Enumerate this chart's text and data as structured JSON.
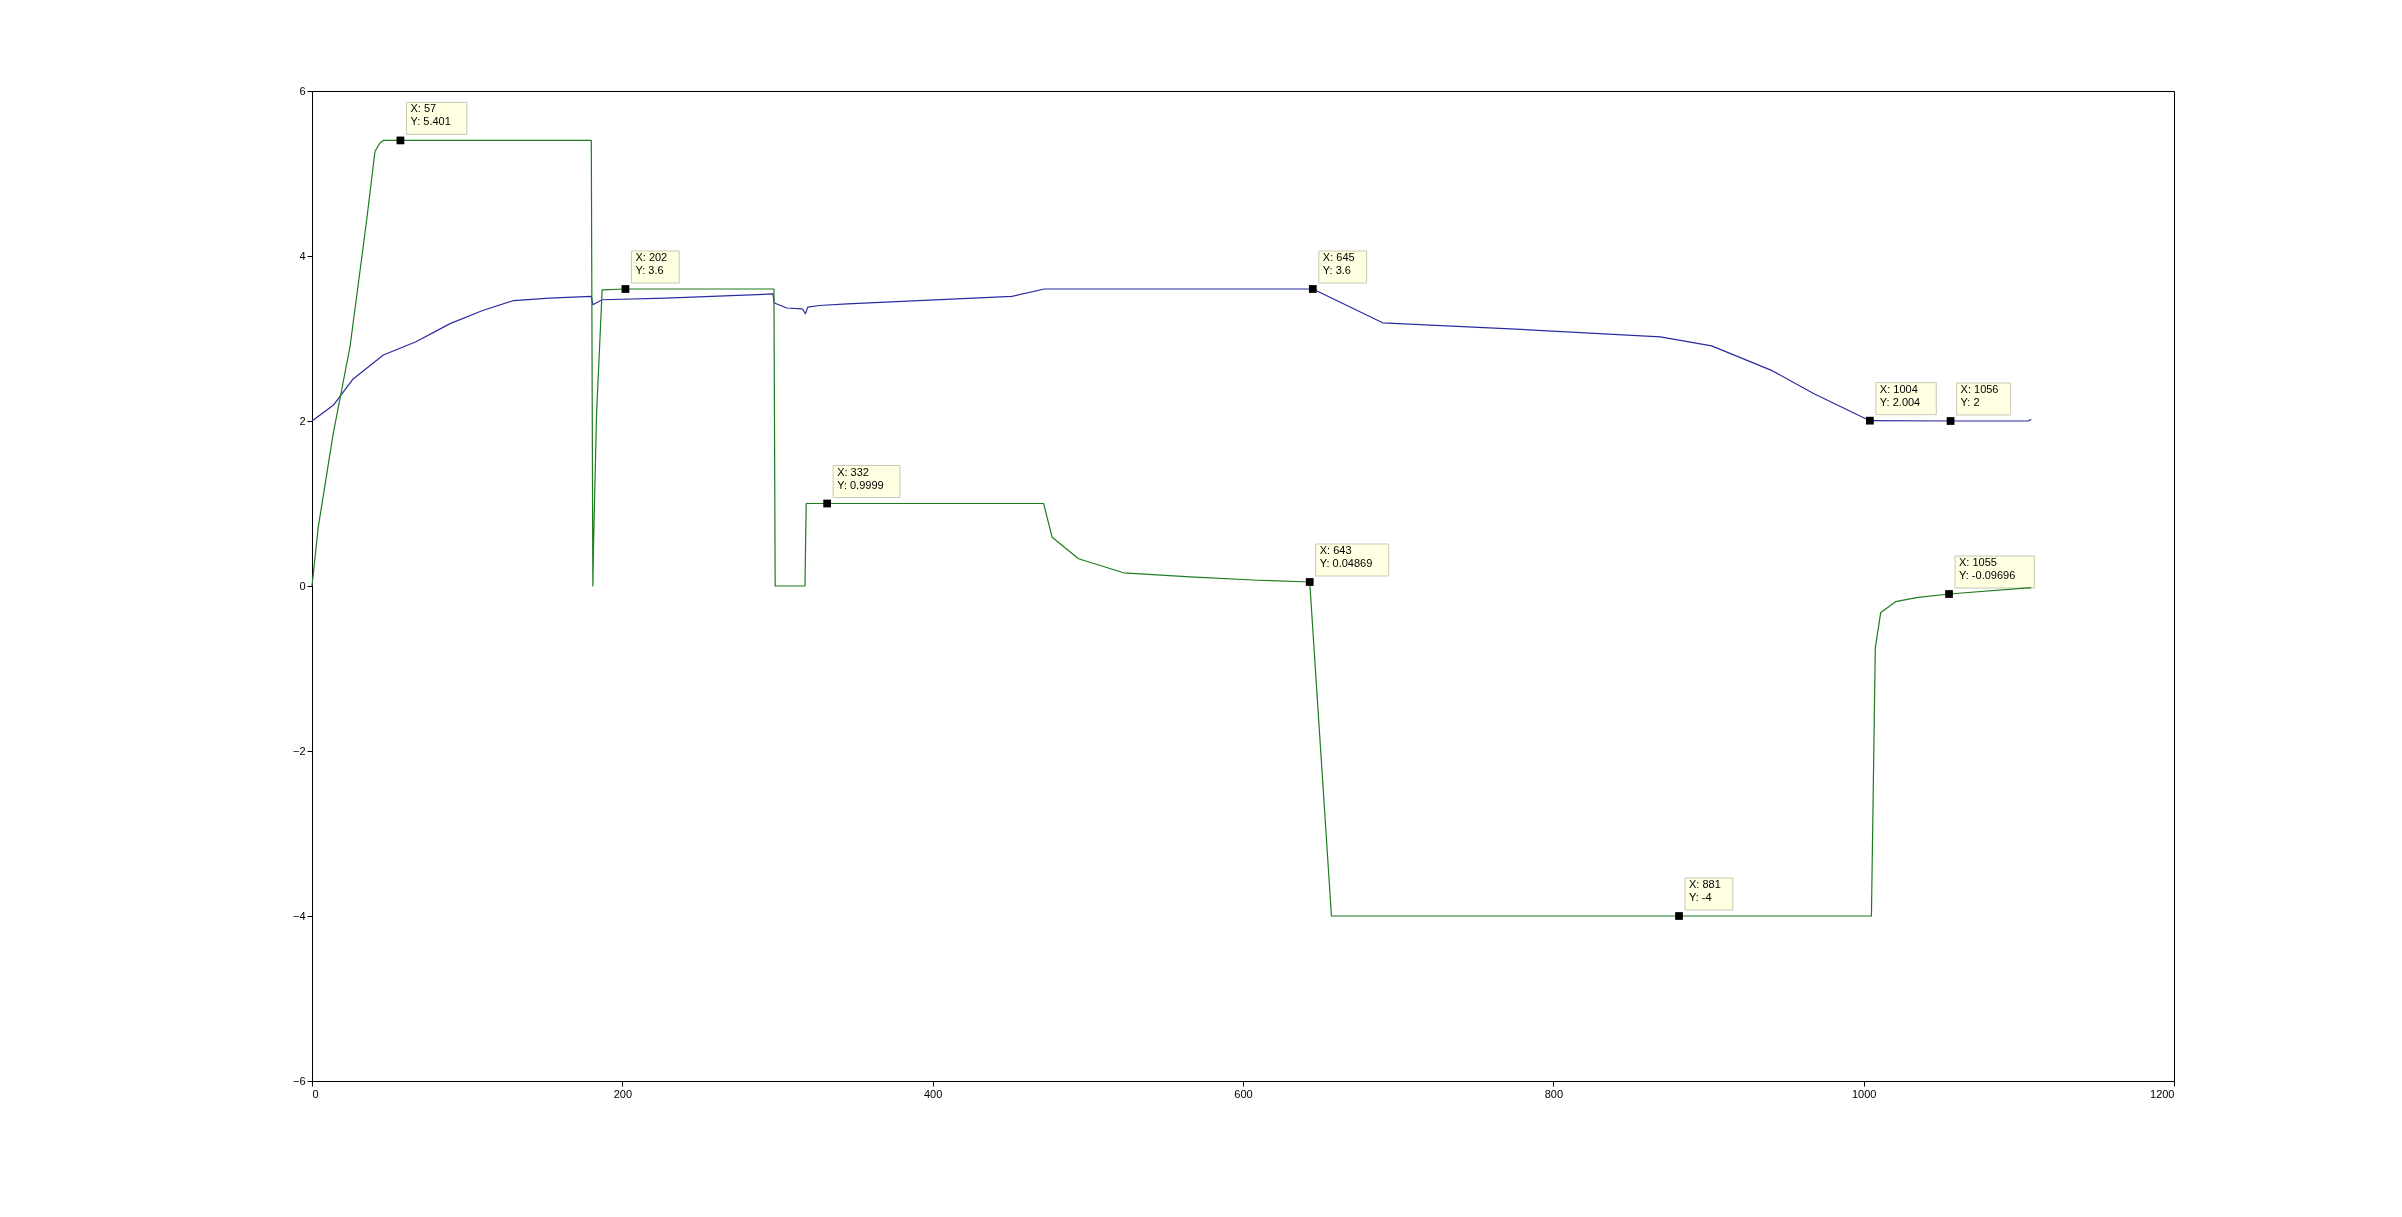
{
  "chart_data": {
    "type": "line",
    "xlim": [
      0,
      1200
    ],
    "xticks": [
      0,
      200,
      400,
      600,
      800,
      1000,
      1200
    ],
    "ylim": [
      -6,
      6
    ],
    "yticks": [
      -6,
      -4,
      -2,
      0,
      2,
      4,
      6
    ],
    "grid": false,
    "marker": "none",
    "line_style": "solid",
    "series": [
      {
        "color": "#2a2aa0",
        "x": [
          0,
          13.7,
          26.5,
          46,
          67,
          89,
          110,
          130,
          153,
          180,
          181,
          187,
          228,
          297,
          298,
          306,
          316,
          318,
          319.5,
          327,
          345,
          451,
          472,
          645,
          690,
          769,
          869,
          902,
          941,
          968,
          1004,
          1056,
          1106,
          1108
        ],
        "values": [
          2.0,
          2.19,
          2.51,
          2.8,
          2.96,
          3.18,
          3.34,
          3.46,
          3.49,
          3.51,
          3.41,
          3.47,
          3.49,
          3.54,
          3.43,
          3.37,
          3.36,
          3.3,
          3.38,
          3.4,
          3.42,
          3.51,
          3.6,
          3.6,
          3.19,
          3.12,
          3.02,
          2.91,
          2.61,
          2.33,
          2.004,
          2,
          2,
          2.02
        ]
      },
      {
        "color": "#1e7b1e",
        "x": [
          0,
          4,
          13.7,
          24.5,
          35,
          40.6,
          43.8,
          45.9,
          57,
          180,
          181,
          181.5,
          183.4,
          187,
          202,
          297.7,
          298.5,
          317.7,
          318.5,
          332,
          471.5,
          477,
          494,
          523,
          566,
          609.5,
          643,
          657,
          881,
          1005,
          1007.5,
          1011,
          1020.6,
          1034,
          1055,
          1108
        ],
        "values": [
          0,
          0.71,
          1.85,
          2.9,
          4.4,
          5.27,
          5.37,
          5.401,
          5.401,
          5.401,
          0,
          0.55,
          2.09,
          3.59,
          3.6,
          3.6,
          0,
          0,
          0.9999,
          0.9999,
          0.9999,
          0.59,
          0.33,
          0.16,
          0.11,
          0.07,
          0.04869,
          -4,
          -4,
          -4,
          -0.75,
          -0.32,
          -0.19,
          -0.14,
          -0.09696,
          -0.02
        ]
      },
      {
        "type": "scatter",
        "color": "#000000",
        "marker": "square",
        "x": [
          57,
          202,
          332,
          645,
          643,
          881,
          1004,
          1056,
          1055
        ],
        "values": [
          5.401,
          3.6,
          0.9999,
          3.6,
          0.04869,
          -4,
          2.004,
          2,
          -0.09696
        ]
      }
    ],
    "annotations": [
      {
        "text": "X: 57\nY: 5.401",
        "x": 57,
        "y": 5.401
      },
      {
        "text": "X: 202\nY: 3.6",
        "x": 202,
        "y": 3.6
      },
      {
        "text": "X: 332\nY: 0.9999",
        "x": 332,
        "y": 0.9999
      },
      {
        "text": "X: 645\nY: 3.6",
        "x": 645,
        "y": 3.6
      },
      {
        "text": "X: 643\nY: 0.04869",
        "x": 643,
        "y": 0.04869
      },
      {
        "text": "X: 881\nY: -4",
        "x": 881,
        "y": -4
      },
      {
        "text": "X: 1004\nY: 2.004",
        "x": 1004,
        "y": 2.004
      },
      {
        "text": "X: 1056\nY: 2",
        "x": 1056,
        "y": 2
      },
      {
        "text": "X: 1055\nY: -0.09696",
        "x": 1055,
        "y": -0.09696
      }
    ]
  }
}
